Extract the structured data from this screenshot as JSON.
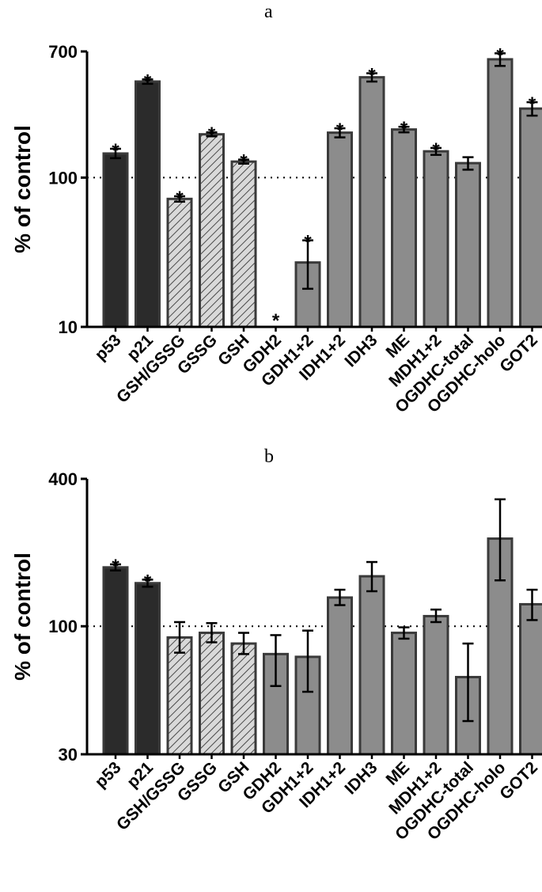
{
  "chart_data": [
    {
      "type": "bar",
      "panel": "a",
      "ylabel": "% of control",
      "yscale": "log",
      "ylim": [
        10,
        700
      ],
      "yticks": [
        10,
        100,
        700
      ],
      "reference_line": 100,
      "categories": [
        "p53",
        "p21",
        "GSH/GSSG",
        "GSSG",
        "GSH",
        "GDH2",
        "GDH1+2",
        "IDH1+2",
        "IDH3",
        "ME",
        "MDH1+2",
        "OGDHC-total",
        "OGDHC-holo",
        "GOT2"
      ],
      "values": [
        145,
        440,
        72,
        195,
        128,
        10,
        27,
        200,
        470,
        210,
        150,
        125,
        620,
        290
      ],
      "error_low": [
        135,
        425,
        69,
        189,
        124,
        10,
        18,
        186,
        440,
        201,
        142,
        113,
        560,
        260
      ],
      "error_high": [
        156,
        455,
        75,
        201,
        132,
        10,
        38,
        214,
        500,
        219,
        158,
        137,
        680,
        320
      ],
      "significant": [
        true,
        true,
        true,
        true,
        true,
        true,
        true,
        true,
        true,
        true,
        true,
        false,
        true,
        true
      ],
      "fill_styles": [
        "dark",
        "dark",
        "hatched",
        "hatched",
        "hatched",
        "gray",
        "gray",
        "gray",
        "gray",
        "gray",
        "gray",
        "gray",
        "gray",
        "gray"
      ],
      "significance_mark": "*"
    },
    {
      "type": "bar",
      "panel": "b",
      "ylabel": "% of control",
      "yscale": "log",
      "ylim": [
        30,
        400
      ],
      "yticks": [
        30,
        100,
        400
      ],
      "reference_line": 100,
      "categories": [
        "p53",
        "p21",
        "GSH/GSSG",
        "GSSG",
        "GSH",
        "GDH2",
        "GDH1+2",
        "IDH1+2",
        "IDH3",
        "ME",
        "MDH1+2",
        "OGDHC-total",
        "OGDHC-holo",
        "GOT2"
      ],
      "values": [
        174,
        150,
        90,
        94,
        85,
        77,
        75,
        131,
        160,
        94,
        110,
        62,
        228,
        123
      ],
      "error_low": [
        169,
        145,
        78,
        86,
        77,
        57,
        54,
        122,
        139,
        89,
        104,
        41,
        154,
        106
      ],
      "error_high": [
        179,
        155,
        104,
        103,
        94,
        92,
        96,
        141,
        183,
        99,
        117,
        85,
        330,
        141
      ],
      "significant": [
        true,
        true,
        false,
        false,
        false,
        false,
        false,
        false,
        false,
        false,
        false,
        false,
        false,
        false
      ],
      "fill_styles": [
        "dark",
        "dark",
        "hatched",
        "hatched",
        "hatched",
        "gray",
        "gray",
        "gray",
        "gray",
        "gray",
        "gray",
        "gray",
        "gray",
        "gray"
      ],
      "significance_mark": "*"
    }
  ],
  "colors": {
    "dark_fill": "#2b2b2b",
    "gray_fill": "#8c8c8c",
    "hatch_fill": "#d9d9d9",
    "bar_outline": "#3a3a3a",
    "axis": "#000000"
  },
  "panels": {
    "a_label": "a",
    "b_label": "b"
  }
}
